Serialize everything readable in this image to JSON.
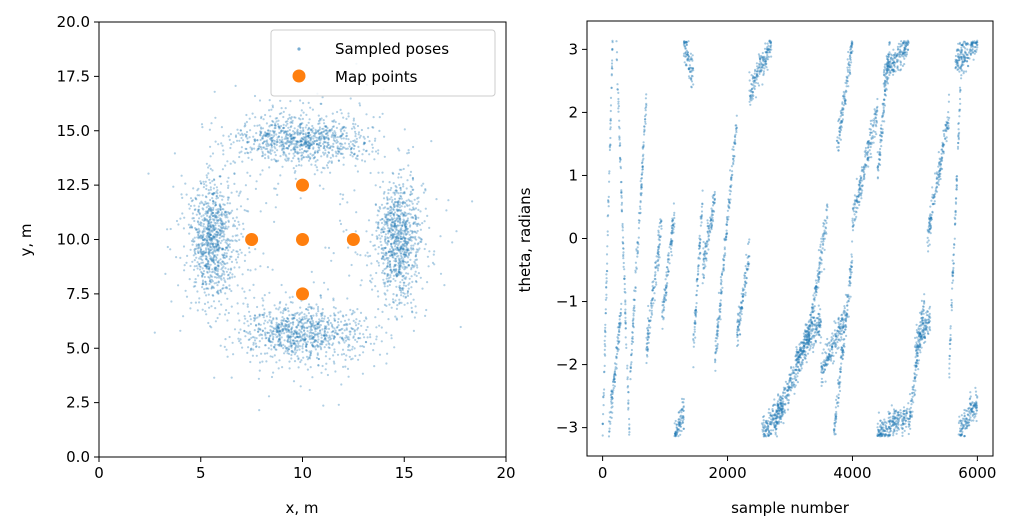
{
  "colors": {
    "sampled_poses": "#1f77b4",
    "map_points": "#ff7f0e",
    "axis": "#000000",
    "legend_border": "#cccccc"
  },
  "chart_data": [
    {
      "type": "scatter",
      "xlabel": "x, m",
      "ylabel": "y, m",
      "xlim": [
        0,
        20
      ],
      "ylim": [
        0,
        20
      ],
      "xticks": [
        "0",
        "5",
        "10",
        "15",
        "20"
      ],
      "yticks": [
        "0.0",
        "2.5",
        "5.0",
        "7.5",
        "10.0",
        "12.5",
        "15.0",
        "17.5",
        "20.0"
      ],
      "grid": false,
      "legend_placement": "top-right",
      "legend": [
        "Sampled poses",
        "Map points"
      ],
      "series": [
        {
          "name": "Map points",
          "points": [
            [
              7.5,
              10.0
            ],
            [
              10.0,
              12.5
            ],
            [
              10.0,
              10.0
            ],
            [
              12.5,
              10.0
            ],
            [
              10.0,
              7.5
            ]
          ]
        },
        {
          "name": "Sampled poses",
          "distribution": "clusters around the map points",
          "clusters": [
            {
              "center": [
                10.0,
                14.6
              ],
              "spread": [
                1.6,
                0.5
              ]
            },
            {
              "center": [
                10.0,
                5.7
              ],
              "spread": [
                1.5,
                0.6
              ]
            },
            {
              "center": [
                5.6,
                10.0
              ],
              "spread": [
                0.5,
                1.4
              ]
            },
            {
              "center": [
                14.7,
                10.0
              ],
              "spread": [
                0.5,
                1.4
              ]
            }
          ],
          "approx_points": 6000
        }
      ]
    },
    {
      "type": "scatter",
      "xlabel": "sample number",
      "ylabel": "theta, radians",
      "xlim": [
        -250,
        6250
      ],
      "ylim": [
        -3.45,
        3.45
      ],
      "xticks": [
        "0",
        "2000",
        "4000",
        "6000"
      ],
      "yticks": [
        "−3",
        "−2",
        "−1",
        "0",
        "1",
        "2",
        "3"
      ],
      "grid": false,
      "series": [
        {
          "name": "Sampled poses",
          "approx_points": 6000,
          "segments": [
            {
              "x": [
                0,
                160
              ],
              "theta": [
                -3.1,
                3.1
              ]
            },
            {
              "x": [
                100,
                300
              ],
              "theta": [
                -3.0,
                -1.1
              ]
            },
            {
              "x": [
                220,
                430
              ],
              "theta": [
                3.1,
                -3.1
              ]
            },
            {
              "x": [
                440,
                700
              ],
              "theta": [
                -2.2,
                2.2
              ]
            },
            {
              "x": [
                700,
                950
              ],
              "theta": [
                -1.8,
                0.3
              ]
            },
            {
              "x": [
                950,
                1150
              ],
              "theta": [
                -1.3,
                0.4
              ]
            },
            {
              "x": [
                1150,
                1300
              ],
              "theta": [
                -3.1,
                -2.8
              ]
            },
            {
              "x": [
                1300,
                1450
              ],
              "theta": [
                3.1,
                2.6
              ]
            },
            {
              "x": [
                1450,
                1600
              ],
              "theta": [
                -1.8,
                0.6
              ]
            },
            {
              "x": [
                1600,
                1800
              ],
              "theta": [
                -0.5,
                0.6
              ]
            },
            {
              "x": [
                1800,
                2150
              ],
              "theta": [
                -1.9,
                1.9
              ]
            },
            {
              "x": [
                2150,
                2350
              ],
              "theta": [
                -1.6,
                -0.2
              ]
            },
            {
              "x": [
                2350,
                2700
              ],
              "theta": [
                2.3,
                3.1
              ]
            },
            {
              "x": [
                2550,
                2900
              ],
              "theta": [
                -3.1,
                -2.6
              ]
            },
            {
              "x": [
                2750,
                3300
              ],
              "theta": [
                -3.0,
                -1.5
              ]
            },
            {
              "x": [
                3100,
                3500
              ],
              "theta": [
                -1.9,
                -1.3
              ]
            },
            {
              "x": [
                3300,
                3600
              ],
              "theta": [
                -1.6,
                0.4
              ]
            },
            {
              "x": [
                3500,
                3900
              ],
              "theta": [
                -2.1,
                -1.2
              ]
            },
            {
              "x": [
                3700,
                4000
              ],
              "theta": [
                -3.1,
                -0.3
              ]
            },
            {
              "x": [
                3750,
                4000
              ],
              "theta": [
                1.4,
                3.1
              ]
            },
            {
              "x": [
                4000,
                4400
              ],
              "theta": [
                0.3,
                2.0
              ]
            },
            {
              "x": [
                4400,
                4600
              ],
              "theta": [
                1.0,
                3.1
              ]
            },
            {
              "x": [
                4500,
                4900
              ],
              "theta": [
                2.6,
                3.1
              ]
            },
            {
              "x": [
                4400,
                4900
              ],
              "theta": [
                -3.1,
                -2.8
              ]
            },
            {
              "x": [
                4900,
                5150
              ],
              "theta": [
                -3.0,
                -1.0
              ]
            },
            {
              "x": [
                5000,
                5250
              ],
              "theta": [
                -1.7,
                -1.3
              ]
            },
            {
              "x": [
                5200,
                5550
              ],
              "theta": [
                0.0,
                2.0
              ]
            },
            {
              "x": [
                5550,
                5750
              ],
              "theta": [
                -2.0,
                2.9
              ]
            },
            {
              "x": [
                5650,
                6000
              ],
              "theta": [
                2.8,
                3.1
              ]
            },
            {
              "x": [
                5700,
                6000
              ],
              "theta": [
                -3.1,
                -2.6
              ]
            }
          ]
        }
      ]
    }
  ]
}
